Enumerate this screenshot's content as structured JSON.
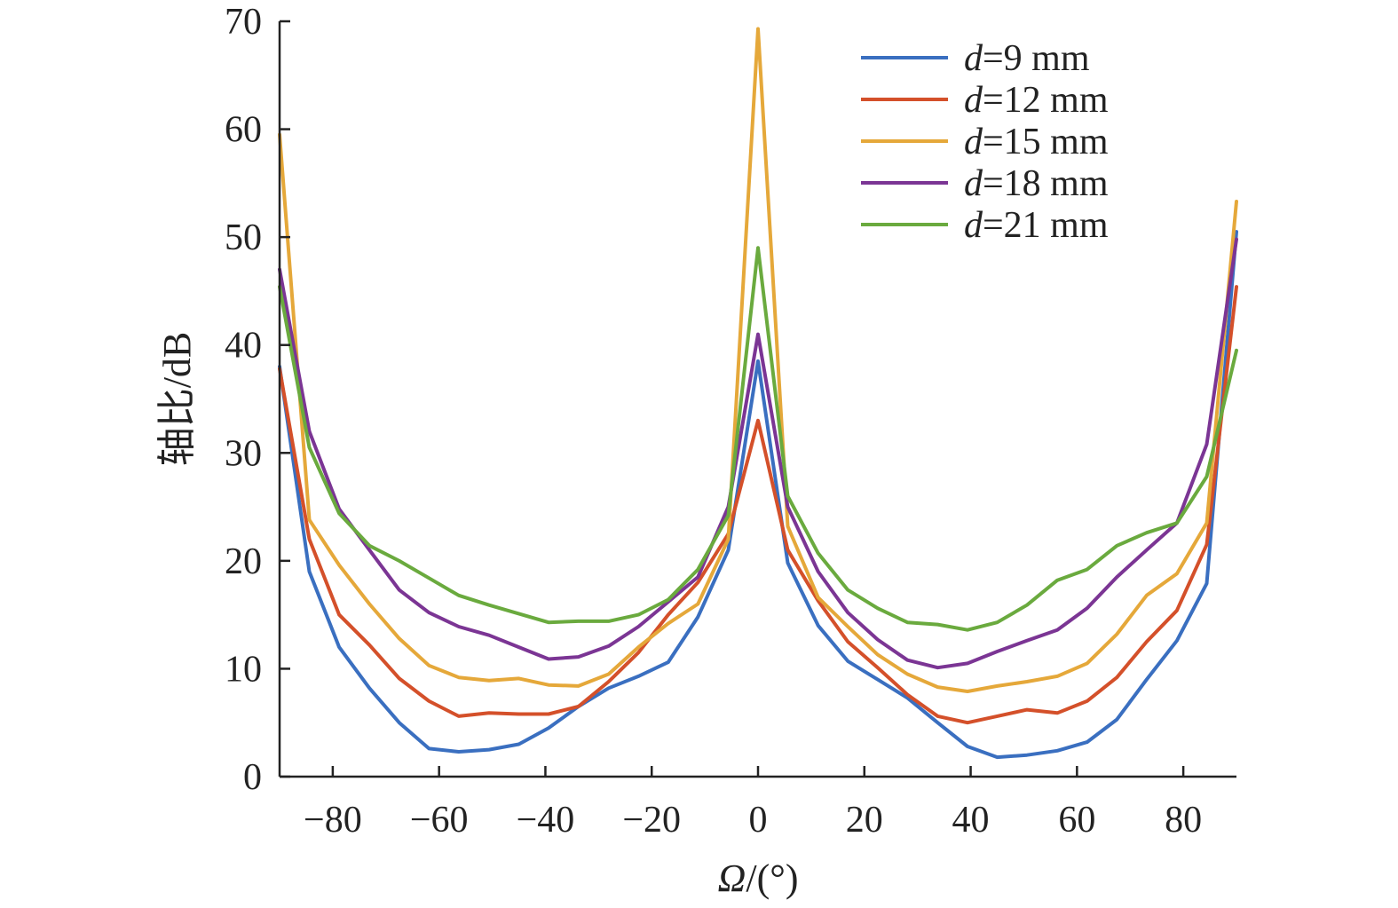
{
  "chart_data": {
    "type": "line",
    "title": "",
    "xlabel": "Ω/(°)",
    "xlabel_symbol": "Ω",
    "xlabel_unit": "/(°)",
    "ylabel": "轴比/dB",
    "xlim": [
      -90,
      90
    ],
    "ylim": [
      0,
      70
    ],
    "xticks": [
      -80,
      -60,
      -40,
      -20,
      0,
      20,
      40,
      60,
      80
    ],
    "xtick_labels": [
      "−80",
      "−60",
      "−40",
      "−20",
      "0",
      "20",
      "40",
      "60",
      "80"
    ],
    "yticks": [
      0,
      10,
      20,
      30,
      40,
      50,
      60,
      70
    ],
    "ytick_labels": [
      "0",
      "10",
      "20",
      "30",
      "40",
      "50",
      "60",
      "70"
    ],
    "grid": false,
    "legend_position": "top-right",
    "x": [
      -90,
      -84.4,
      -78.8,
      -73.1,
      -67.5,
      -61.9,
      -56.3,
      -50.6,
      -45,
      -39.4,
      -33.8,
      -28.1,
      -22.5,
      -16.9,
      -11.3,
      -5.6,
      0,
      5.6,
      11.3,
      16.9,
      22.5,
      28.1,
      33.8,
      39.4,
      45,
      50.6,
      56.3,
      61.9,
      67.5,
      73.1,
      78.8,
      84.4,
      90
    ],
    "series": [
      {
        "name": "d=9 mm",
        "prefix": "d",
        "suffix": "=9 mm",
        "color": "#3a6fc0",
        "values": [
          38,
          19,
          12,
          8.2,
          5,
          2.6,
          2.3,
          2.5,
          3,
          4.5,
          6.5,
          8.2,
          9.3,
          10.6,
          14.8,
          21,
          38.5,
          19.8,
          14,
          10.7,
          9,
          7.3,
          5,
          2.8,
          1.8,
          2,
          2.4,
          3.2,
          5.3,
          9,
          12.6,
          17.9,
          50.5
        ]
      },
      {
        "name": "d=12 mm",
        "prefix": "d",
        "suffix": "=12 mm",
        "color": "#d4502a",
        "values": [
          37.8,
          22,
          15,
          12.2,
          9.1,
          7,
          5.6,
          5.9,
          5.8,
          5.8,
          6.5,
          8.8,
          11.5,
          15,
          18,
          22.5,
          33,
          21,
          16.3,
          12.5,
          10.1,
          7.6,
          5.6,
          5,
          5.6,
          6.2,
          5.9,
          7,
          9.2,
          12.5,
          15.4,
          21.5,
          45.4
        ]
      },
      {
        "name": "d=15 mm",
        "prefix": "d",
        "suffix": "=15 mm",
        "color": "#e5a83a",
        "values": [
          59.5,
          23.8,
          19.6,
          16,
          12.8,
          10.3,
          9.2,
          8.9,
          9.1,
          8.5,
          8.4,
          9.5,
          12,
          14.2,
          16,
          22,
          69.3,
          23.2,
          16.6,
          13.9,
          11.3,
          9.5,
          8.3,
          7.9,
          8.4,
          8.8,
          9.3,
          10.5,
          13.2,
          16.8,
          18.8,
          23.5,
          53.3
        ]
      },
      {
        "name": "d=18 mm",
        "prefix": "d",
        "suffix": "=18 mm",
        "color": "#7b3594",
        "values": [
          47,
          32,
          24.8,
          21,
          17.3,
          15.2,
          13.9,
          13.1,
          12,
          10.9,
          11.1,
          12.1,
          13.9,
          16.2,
          18.5,
          25,
          41,
          25,
          19,
          15.2,
          12.7,
          10.8,
          10.1,
          10.5,
          11.6,
          12.6,
          13.6,
          15.6,
          18.5,
          21,
          23.5,
          30.8,
          49.8
        ]
      },
      {
        "name": "d=21 mm",
        "prefix": "d",
        "suffix": "=21 mm",
        "color": "#6aaa3e",
        "values": [
          45.4,
          30.5,
          24.4,
          21.4,
          20,
          18.4,
          16.8,
          15.9,
          15.1,
          14.3,
          14.4,
          14.4,
          15,
          16.4,
          19.2,
          24.2,
          49,
          26,
          20.7,
          17.3,
          15.6,
          14.3,
          14.1,
          13.6,
          14.3,
          15.9,
          18.2,
          19.2,
          21.4,
          22.6,
          23.5,
          27.8,
          39.5
        ]
      }
    ]
  }
}
